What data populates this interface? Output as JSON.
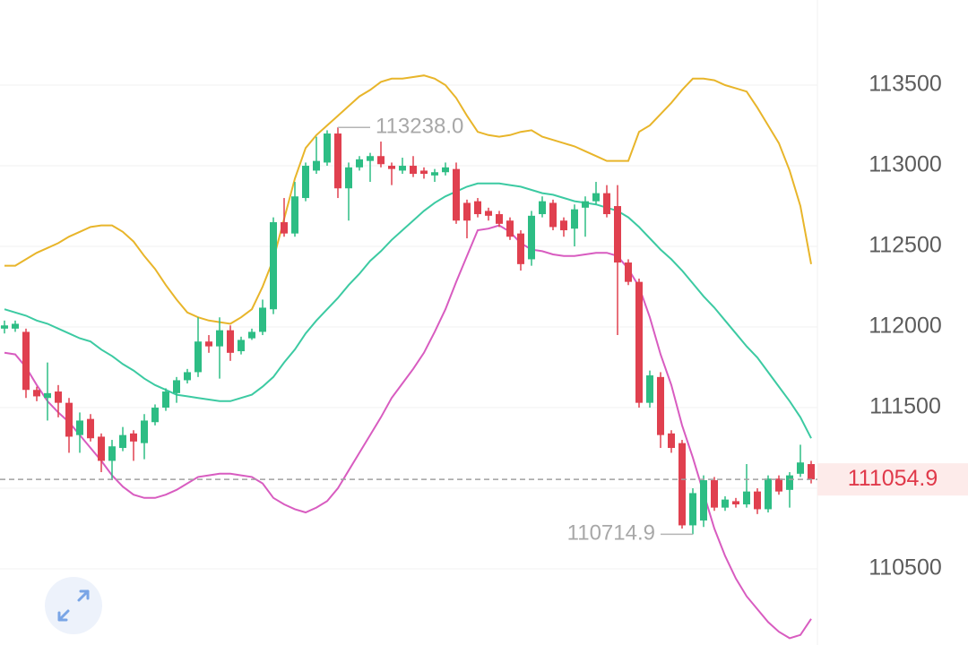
{
  "chart_data": {
    "type": "candlestick",
    "categories": [
      null,
      null,
      null,
      null,
      null,
      null,
      null,
      null,
      null,
      null,
      null,
      null,
      null,
      null,
      null,
      null,
      null,
      null,
      null,
      null,
      null,
      null,
      null,
      null,
      null,
      null,
      null,
      null,
      null,
      null,
      null,
      null,
      null,
      null,
      null,
      null,
      null,
      null,
      null,
      null,
      null,
      null,
      null,
      null,
      null,
      null,
      null,
      null,
      null,
      null,
      null,
      null,
      null,
      null,
      null,
      null,
      null,
      null,
      null,
      null,
      null,
      null,
      null,
      null,
      null,
      null,
      null,
      null,
      null,
      null,
      null,
      null,
      null,
      null,
      null,
      null
    ],
    "open": [
      111990,
      111990,
      111970,
      111610,
      111560,
      111600,
      111530,
      111330,
      111430,
      111320,
      111170,
      111250,
      111340,
      111280,
      111410,
      111500,
      111590,
      111670,
      111720,
      111910,
      111880,
      111980,
      111850,
      111930,
      111970,
      112110,
      112650,
      112580,
      112800,
      112970,
      113020,
      113200,
      112860,
      112990,
      113030,
      113060,
      113000,
      112970,
      113000,
      112970,
      112940,
      112960,
      112980,
      112770,
      112780,
      112720,
      112700,
      112660,
      112580,
      112420,
      112700,
      112770,
      112660,
      112610,
      112740,
      112780,
      112830,
      112750,
      112400,
      112280,
      111530,
      111690,
      111340,
      111280,
      110770,
      110800,
      111050,
      110880,
      110920,
      110900,
      110980,
      110870,
      111060,
      110990,
      111090,
      111150
    ],
    "high": [
      112040,
      112040,
      111990,
      111630,
      111780,
      111640,
      111560,
      111470,
      111460,
      111340,
      111300,
      111380,
      111360,
      111460,
      111520,
      111620,
      111690,
      111740,
      112060,
      111950,
      112060,
      112010,
      111940,
      111990,
      112170,
      112680,
      112800,
      112900,
      113020,
      113180,
      113220,
      113238,
      113020,
      113060,
      113080,
      113150,
      113020,
      113050,
      113060,
      112990,
      112980,
      113020,
      113020,
      112790,
      112800,
      112740,
      112720,
      112680,
      112600,
      112720,
      112810,
      112790,
      112680,
      112760,
      112810,
      112900,
      112880,
      112880,
      112420,
      112300,
      111730,
      111720,
      111360,
      111300,
      111000,
      111080,
      111070,
      110950,
      110940,
      111150,
      111000,
      111080,
      111080,
      111100,
      111270,
      111170
    ],
    "low": [
      111960,
      111970,
      111560,
      111540,
      111420,
      111440,
      111220,
      111220,
      111290,
      111100,
      111050,
      111230,
      111170,
      111180,
      111390,
      111480,
      111530,
      111650,
      111690,
      111840,
      111680,
      111790,
      111830,
      111920,
      111950,
      112080,
      112560,
      112560,
      112780,
      112950,
      113000,
      112800,
      112660,
      112970,
      112900,
      112990,
      112880,
      112950,
      112930,
      112920,
      112900,
      112940,
      112640,
      112550,
      112680,
      112660,
      112620,
      112540,
      112350,
      112380,
      112680,
      112600,
      112560,
      112500,
      112560,
      112760,
      112680,
      111950,
      112260,
      111500,
      111500,
      111250,
      111220,
      110750,
      110714.9,
      110760,
      110860,
      110860,
      110880,
      110880,
      110840,
      110850,
      110960,
      110880,
      111070,
      111030
    ],
    "close": [
      112010,
      112020,
      111610,
      111570,
      111590,
      111530,
      111320,
      111420,
      111310,
      111170,
      111260,
      111330,
      111290,
      111420,
      111500,
      111600,
      111670,
      111720,
      111910,
      111880,
      111980,
      111840,
      111920,
      111970,
      112120,
      112650,
      112580,
      112810,
      113000,
      113030,
      113200,
      112860,
      112990,
      113040,
      113060,
      113010,
      112980,
      113000,
      112950,
      112950,
      112960,
      112990,
      112660,
      112660,
      112700,
      112690,
      112640,
      112560,
      112390,
      112690,
      112780,
      112620,
      112600,
      112730,
      112780,
      112830,
      112700,
      112400,
      112280,
      111530,
      111700,
      111330,
      111250,
      110770,
      110970,
      111050,
      110880,
      110930,
      110900,
      110980,
      110870,
      111060,
      110980,
      111080,
      111160,
      111054.9
    ],
    "up_color": "#2dbd84",
    "down_color": "#e0404f",
    "bands": [
      {
        "color": "#e8b52a",
        "values": [
          112380,
          112380,
          112420,
          112460,
          112490,
          112520,
          112560,
          112590,
          112620,
          112630,
          112630,
          112590,
          112530,
          112440,
          112360,
          112260,
          112170,
          112090,
          112060,
          112040,
          112030,
          112020,
          112060,
          112110,
          112250,
          112420,
          112670,
          112920,
          113110,
          113190,
          113250,
          113310,
          113370,
          113430,
          113470,
          113520,
          113540,
          113540,
          113550,
          113560,
          113540,
          113500,
          113420,
          113310,
          113210,
          113190,
          113180,
          113190,
          113210,
          113220,
          113180,
          113160,
          113140,
          113120,
          113090,
          113060,
          113030,
          113030,
          113030,
          113210,
          113250,
          113320,
          113390,
          113470,
          113540,
          113540,
          113530,
          113500,
          113480,
          113460,
          113360,
          113250,
          113140,
          112970,
          112750,
          112390
        ]
      },
      {
        "color": "#3ccaa2",
        "values": [
          112110,
          112090,
          112070,
          112040,
          112020,
          111990,
          111960,
          111930,
          111910,
          111860,
          111820,
          111770,
          111730,
          111680,
          111640,
          111610,
          111580,
          111570,
          111560,
          111550,
          111540,
          111540,
          111560,
          111580,
          111630,
          111690,
          111780,
          111860,
          111960,
          112040,
          112110,
          112180,
          112260,
          112330,
          112410,
          112470,
          112540,
          112600,
          112660,
          112720,
          112770,
          112810,
          112840,
          112870,
          112890,
          112890,
          112890,
          112880,
          112870,
          112850,
          112830,
          112820,
          112800,
          112780,
          112770,
          112760,
          112740,
          112720,
          112680,
          112620,
          112550,
          112480,
          112420,
          112350,
          112270,
          112190,
          112120,
          112040,
          111960,
          111880,
          111810,
          111720,
          111630,
          111540,
          111440,
          111310
        ]
      },
      {
        "color": "#d85cc0",
        "values": [
          111840,
          111830,
          111750,
          111640,
          111540,
          111470,
          111410,
          111330,
          111250,
          111170,
          111080,
          111010,
          110960,
          110940,
          110940,
          110960,
          110990,
          111030,
          111070,
          111080,
          111090,
          111090,
          111080,
          111070,
          111030,
          110940,
          110900,
          110870,
          110850,
          110880,
          110920,
          111000,
          111110,
          111220,
          111330,
          111440,
          111560,
          111650,
          111740,
          111840,
          111970,
          112110,
          112280,
          112440,
          112600,
          112610,
          112630,
          112590,
          112520,
          112480,
          112470,
          112450,
          112440,
          112440,
          112450,
          112460,
          112460,
          112440,
          112360,
          112250,
          112060,
          111830,
          111640,
          111390,
          111190,
          110970,
          110750,
          110580,
          110440,
          110330,
          110250,
          110170,
          110110,
          110070,
          110090,
          110190
        ]
      }
    ],
    "ylim": [
      110028,
      114028
    ],
    "yticks": [
      110500,
      111000,
      111500,
      112000,
      112500,
      113000,
      113500
    ],
    "grid": true,
    "high_label": {
      "value": 113238.0,
      "label": "113238.0"
    },
    "low_label": {
      "value": 110714.9,
      "label": "110714.9"
    },
    "last_price": {
      "value": 111054.9,
      "label": "111054.9",
      "color": "#e0394a"
    }
  }
}
